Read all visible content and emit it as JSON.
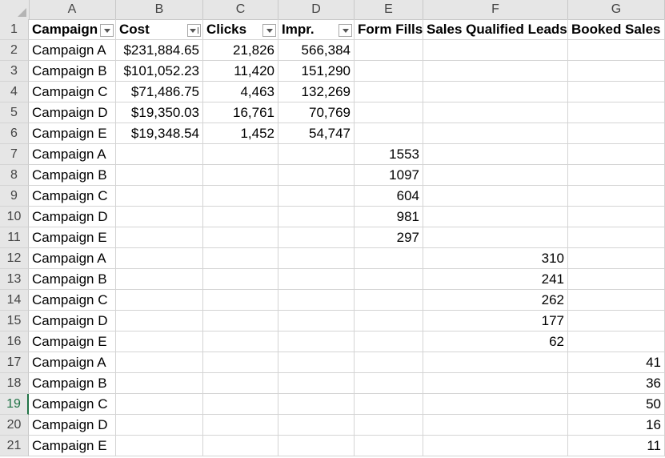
{
  "columns": [
    "A",
    "B",
    "C",
    "D",
    "E",
    "F",
    "G"
  ],
  "header_labels": [
    "Campaign",
    "Cost",
    "Clicks",
    "Impr.",
    "Form Fills",
    "Sales Qualified Leads",
    "Booked Sales"
  ],
  "rows": [
    {
      "num": "1",
      "cells": [
        "Campaign",
        "Cost",
        "Clicks",
        "Impr.",
        "Form Fills",
        "Sales Qualified Leads",
        "Booked Sales"
      ]
    },
    {
      "num": "2",
      "cells": [
        "Campaign A",
        "$231,884.65",
        "21,826",
        "566,384",
        "",
        "",
        ""
      ]
    },
    {
      "num": "3",
      "cells": [
        "Campaign B",
        "$101,052.23",
        "11,420",
        "151,290",
        "",
        "",
        ""
      ]
    },
    {
      "num": "4",
      "cells": [
        "Campaign C",
        "$71,486.75",
        "4,463",
        "132,269",
        "",
        "",
        ""
      ]
    },
    {
      "num": "5",
      "cells": [
        "Campaign D",
        "$19,350.03",
        "16,761",
        "70,769",
        "",
        "",
        ""
      ]
    },
    {
      "num": "6",
      "cells": [
        "Campaign E",
        "$19,348.54",
        "1,452",
        "54,747",
        "",
        "",
        ""
      ]
    },
    {
      "num": "7",
      "cells": [
        "Campaign A",
        "",
        "",
        "",
        "1553",
        "",
        ""
      ]
    },
    {
      "num": "8",
      "cells": [
        "Campaign B",
        "",
        "",
        "",
        "1097",
        "",
        ""
      ]
    },
    {
      "num": "9",
      "cells": [
        "Campaign C",
        "",
        "",
        "",
        "604",
        "",
        ""
      ]
    },
    {
      "num": "10",
      "cells": [
        "Campaign D",
        "",
        "",
        "",
        "981",
        "",
        ""
      ]
    },
    {
      "num": "11",
      "cells": [
        "Campaign E",
        "",
        "",
        "",
        "297",
        "",
        ""
      ]
    },
    {
      "num": "12",
      "cells": [
        "Campaign A",
        "",
        "",
        "",
        "",
        "310",
        ""
      ]
    },
    {
      "num": "13",
      "cells": [
        "Campaign B",
        "",
        "",
        "",
        "",
        "241",
        ""
      ]
    },
    {
      "num": "14",
      "cells": [
        "Campaign C",
        "",
        "",
        "",
        "",
        "262",
        ""
      ]
    },
    {
      "num": "15",
      "cells": [
        "Campaign D",
        "",
        "",
        "",
        "",
        "177",
        ""
      ]
    },
    {
      "num": "16",
      "cells": [
        "Campaign E",
        "",
        "",
        "",
        "",
        "62",
        ""
      ]
    },
    {
      "num": "17",
      "cells": [
        "Campaign A",
        "",
        "",
        "",
        "",
        "",
        "41"
      ]
    },
    {
      "num": "18",
      "cells": [
        "Campaign B",
        "",
        "",
        "",
        "",
        "",
        "36"
      ]
    },
    {
      "num": "19",
      "cells": [
        "Campaign C",
        "",
        "",
        "",
        "",
        "",
        "50"
      ]
    },
    {
      "num": "20",
      "cells": [
        "Campaign D",
        "",
        "",
        "",
        "",
        "",
        "16"
      ]
    },
    {
      "num": "21",
      "cells": [
        "Campaign E",
        "",
        "",
        "",
        "",
        "",
        "11"
      ]
    }
  ],
  "active_row": "19",
  "filter_columns": [
    "A",
    "B",
    "C",
    "D"
  ],
  "sorted_column": "B",
  "colors": {
    "accent": "#217346",
    "header_bg": "#e6e6e6",
    "grid": "#d4d4d4"
  }
}
